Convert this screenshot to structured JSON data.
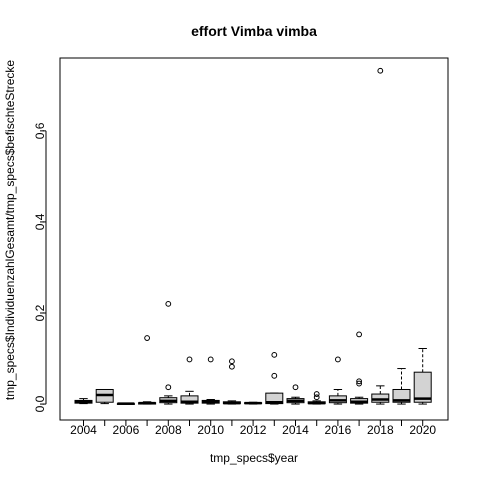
{
  "chart_data": {
    "type": "boxplot",
    "title": "effort Vimba vimba",
    "xlabel": "tmp_specs$year",
    "ylabel": "tmp_specs$IndividuenzahlGesamt/tmp_specs$befischteStrecke",
    "ylim": [
      -0.035,
      0.76
    ],
    "y_ticks": [
      0.0,
      0.2,
      0.4,
      0.6
    ],
    "y_tick_labels": [
      "0.0",
      "0.2",
      "0.4",
      "0.6"
    ],
    "x_tick_labels": [
      "2004",
      "2006",
      "2008",
      "2010",
      "2012",
      "2014",
      "2016",
      "2018",
      "2020"
    ],
    "grid": false,
    "box_fill": "#d3d3d3",
    "boxes": [
      {
        "year": 2004,
        "min": 0.001,
        "q1": 0.002,
        "median": 0.005,
        "q3": 0.008,
        "max": 0.012,
        "outliers": []
      },
      {
        "year": 2005,
        "min": 0.001,
        "q1": 0.004,
        "median": 0.02,
        "q3": 0.032,
        "max": 0.032,
        "outliers": []
      },
      {
        "year": 2006,
        "min": 0.0,
        "q1": 0.0,
        "median": 0.001,
        "q3": 0.001,
        "max": 0.002,
        "outliers": []
      },
      {
        "year": 2007,
        "min": 0.0,
        "q1": 0.0,
        "median": 0.002,
        "q3": 0.003,
        "max": 0.005,
        "outliers": [
          0.145
        ]
      },
      {
        "year": 2008,
        "min": 0.0,
        "q1": 0.003,
        "median": 0.007,
        "q3": 0.014,
        "max": 0.018,
        "outliers": [
          0.037,
          0.22
        ]
      },
      {
        "year": 2009,
        "min": 0.0,
        "q1": 0.002,
        "median": 0.005,
        "q3": 0.018,
        "max": 0.028,
        "outliers": [
          0.098
        ]
      },
      {
        "year": 2010,
        "min": 0.0,
        "q1": 0.002,
        "median": 0.005,
        "q3": 0.008,
        "max": 0.01,
        "outliers": [
          0.098
        ]
      },
      {
        "year": 2011,
        "min": 0.0,
        "q1": 0.001,
        "median": 0.002,
        "q3": 0.005,
        "max": 0.007,
        "outliers": [
          0.082,
          0.094
        ]
      },
      {
        "year": 2012,
        "min": 0.0,
        "q1": 0.001,
        "median": 0.002,
        "q3": 0.003,
        "max": 0.004,
        "outliers": []
      },
      {
        "year": 2013,
        "min": 0.0,
        "q1": 0.001,
        "median": 0.004,
        "q3": 0.024,
        "max": 0.024,
        "outliers": [
          0.062,
          0.108
        ]
      },
      {
        "year": 2014,
        "min": 0.0,
        "q1": 0.003,
        "median": 0.007,
        "q3": 0.012,
        "max": 0.015,
        "outliers": [
          0.037
        ]
      },
      {
        "year": 2015,
        "min": 0.0,
        "q1": 0.001,
        "median": 0.002,
        "q3": 0.005,
        "max": 0.007,
        "outliers": [
          0.015,
          0.022
        ]
      },
      {
        "year": 2016,
        "min": 0.0,
        "q1": 0.003,
        "median": 0.008,
        "q3": 0.018,
        "max": 0.032,
        "outliers": [
          0.098
        ]
      },
      {
        "year": 2017,
        "min": 0.0,
        "q1": 0.002,
        "median": 0.005,
        "q3": 0.012,
        "max": 0.015,
        "outliers": [
          0.045,
          0.05,
          0.153
        ]
      },
      {
        "year": 2018,
        "min": 0.0,
        "q1": 0.004,
        "median": 0.01,
        "q3": 0.022,
        "max": 0.04,
        "outliers": [
          0.732
        ]
      },
      {
        "year": 2019,
        "min": 0.0,
        "q1": 0.004,
        "median": 0.008,
        "q3": 0.032,
        "max": 0.078,
        "outliers": []
      },
      {
        "year": 2020,
        "min": 0.0,
        "q1": 0.004,
        "median": 0.012,
        "q3": 0.07,
        "max": 0.122,
        "outliers": []
      }
    ]
  }
}
